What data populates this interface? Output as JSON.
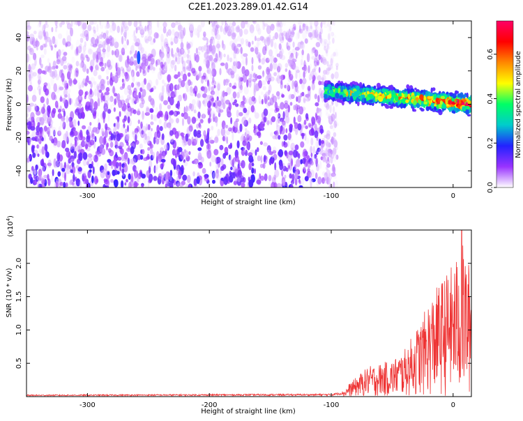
{
  "title": "C2E1.2023.289.01.42.G14",
  "chart_data": [
    {
      "type": "heatmap",
      "xlabel": "Height of straight line (km)",
      "ylabel": "Frequency (Hz)",
      "xlim": [
        -350,
        15
      ],
      "ylim": [
        -50,
        50
      ],
      "x_ticks": [
        -300,
        -200,
        -100,
        0
      ],
      "y_ticks": [
        -40,
        -20,
        0,
        20,
        40
      ],
      "colorbar": {
        "label": "Normalized spectral amplitude",
        "ticks": [
          0.0,
          0.2,
          0.4,
          0.6
        ],
        "tick_labels": [
          "0.0",
          "0.2",
          "0.4",
          "0.6"
        ],
        "range": [
          0,
          0.75
        ],
        "colors": [
          "#ffffff",
          "#9933ff",
          "#2222ff",
          "#00cccc",
          "#00ff66",
          "#ffff00",
          "#ff8800",
          "#ff0000",
          "#ff0066"
        ]
      },
      "regions": [
        {
          "x_range": [
            -350,
            -95
          ],
          "freq_range": [
            -50,
            50
          ],
          "description": "broadband noise",
          "typical_amplitude": 0.1
        },
        {
          "x_range": [
            -105,
            15
          ],
          "freq_center": [
            8,
            0
          ],
          "freq_halfwidth": 6,
          "description": "signal band",
          "typical_amplitude": 0.35
        }
      ],
      "marker": {
        "x": -258,
        "freq_range": [
          24,
          32
        ]
      }
    },
    {
      "type": "line",
      "xlabel": "Height of straight line (km)",
      "ylabel": "SNR (10 * v/v)",
      "y_multiplier": "(x10",
      "y_multiplier_exp": "4",
      "y_multiplier_close": ")",
      "xlim": [
        -350,
        15
      ],
      "ylim": [
        0,
        2.5
      ],
      "x_ticks": [
        -300,
        -200,
        -100,
        0
      ],
      "y_ticks": [
        0.5,
        1.0,
        1.5,
        2.0
      ],
      "y_tick_labels": [
        "0.5",
        "1.0",
        "1.5",
        "2.0"
      ],
      "color": "#ee3333",
      "series": [
        {
          "envelope": [
            {
              "x": -350,
              "y": 0.02
            },
            {
              "x": -100,
              "y": 0.03
            },
            {
              "x": -90,
              "y": 0.06
            },
            {
              "x": -85,
              "y": 0.2
            },
            {
              "x": -70,
              "y": 0.45
            },
            {
              "x": -50,
              "y": 0.55
            },
            {
              "x": -40,
              "y": 0.7
            },
            {
              "x": -25,
              "y": 1.2
            },
            {
              "x": -20,
              "y": 1.45
            },
            {
              "x": -10,
              "y": 1.75
            },
            {
              "x": 0,
              "y": 2.0
            },
            {
              "x": 8,
              "y": 2.3
            },
            {
              "x": 15,
              "y": 1.9
            }
          ],
          "peak": {
            "x": 7,
            "y": 2.5
          }
        }
      ]
    }
  ]
}
